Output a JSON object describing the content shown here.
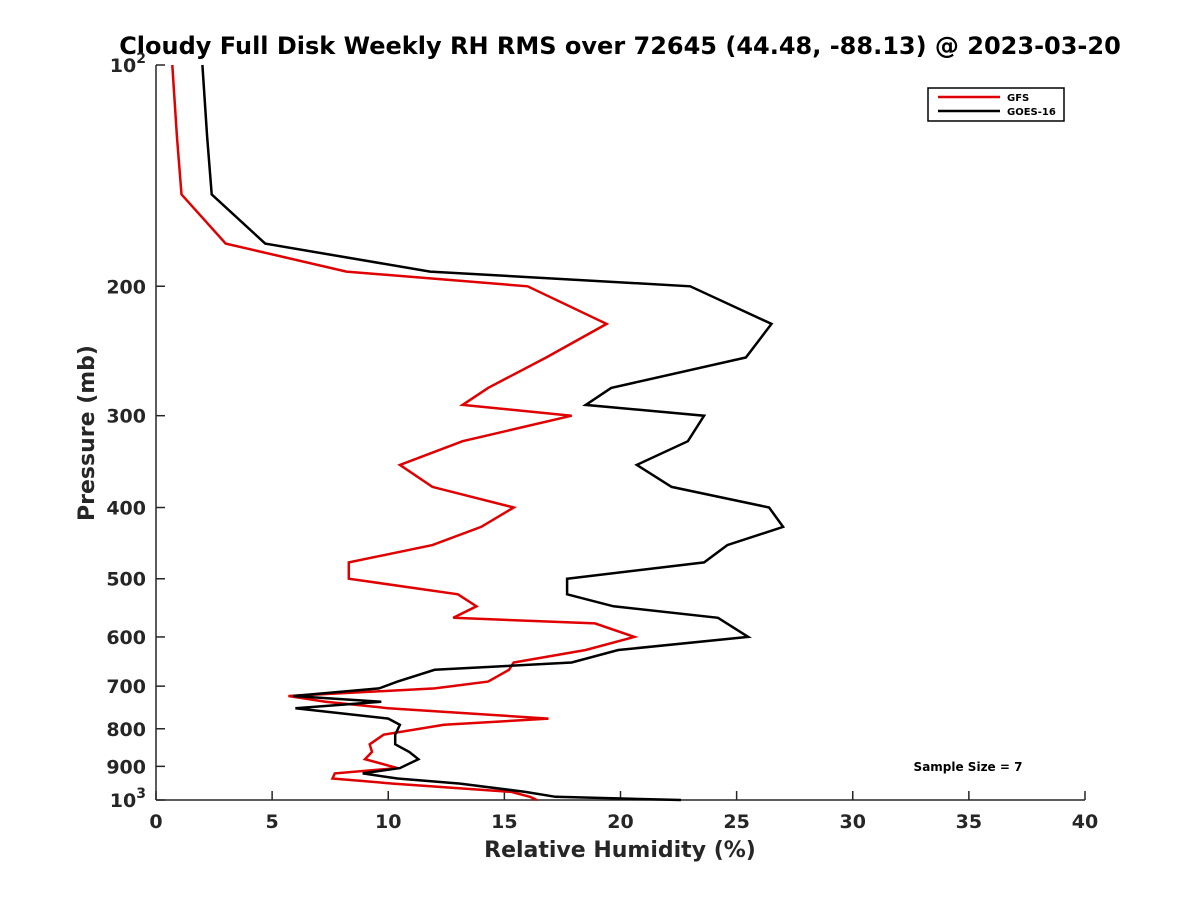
{
  "chart_data": {
    "type": "line",
    "title": "Cloudy Full Disk Weekly RH RMS over 72645 (44.48, -88.13) @ 2023-03-20",
    "xlabel": "Relative Humidity (%)",
    "ylabel": "Pressure (mb)",
    "xlim": [
      0,
      40
    ],
    "ylim": [
      1000,
      100
    ],
    "y_scale": "log",
    "x_ticks": [
      0,
      5,
      10,
      15,
      20,
      25,
      30,
      35,
      40
    ],
    "y_ticks": [
      {
        "value": 100,
        "label": "10",
        "sup": "2"
      },
      {
        "value": 200,
        "label": "200",
        "sup": ""
      },
      {
        "value": 300,
        "label": "300",
        "sup": ""
      },
      {
        "value": 400,
        "label": "400",
        "sup": ""
      },
      {
        "value": 500,
        "label": "500",
        "sup": ""
      },
      {
        "value": 600,
        "label": "600",
        "sup": ""
      },
      {
        "value": 700,
        "label": "700",
        "sup": ""
      },
      {
        "value": 800,
        "label": "800",
        "sup": ""
      },
      {
        "value": 900,
        "label": "900",
        "sup": ""
      },
      {
        "value": 1000,
        "label": "10",
        "sup": "3"
      }
    ],
    "grid": false,
    "legend_position": "top-right",
    "annotation": "Sample Size = 7",
    "series": [
      {
        "name": "GFS",
        "color": "#e00000",
        "points": [
          {
            "x": 0.7,
            "y": 100
          },
          {
            "x": 0.9,
            "y": 125
          },
          {
            "x": 1.1,
            "y": 150
          },
          {
            "x": 3.0,
            "y": 175
          },
          {
            "x": 8.2,
            "y": 191
          },
          {
            "x": 16.0,
            "y": 200
          },
          {
            "x": 19.4,
            "y": 225
          },
          {
            "x": 16.8,
            "y": 250
          },
          {
            "x": 14.3,
            "y": 275
          },
          {
            "x": 13.2,
            "y": 290
          },
          {
            "x": 17.9,
            "y": 300
          },
          {
            "x": 13.2,
            "y": 325
          },
          {
            "x": 10.5,
            "y": 350
          },
          {
            "x": 11.9,
            "y": 375
          },
          {
            "x": 15.4,
            "y": 400
          },
          {
            "x": 14.0,
            "y": 425
          },
          {
            "x": 11.9,
            "y": 450
          },
          {
            "x": 8.3,
            "y": 475
          },
          {
            "x": 8.3,
            "y": 500
          },
          {
            "x": 13.0,
            "y": 525
          },
          {
            "x": 13.8,
            "y": 545
          },
          {
            "x": 12.8,
            "y": 565
          },
          {
            "x": 18.9,
            "y": 575
          },
          {
            "x": 20.6,
            "y": 600
          },
          {
            "x": 18.5,
            "y": 625
          },
          {
            "x": 15.4,
            "y": 650
          },
          {
            "x": 15.2,
            "y": 665
          },
          {
            "x": 14.3,
            "y": 690
          },
          {
            "x": 12.0,
            "y": 705
          },
          {
            "x": 5.7,
            "y": 722
          },
          {
            "x": 7.3,
            "y": 735
          },
          {
            "x": 10.0,
            "y": 750
          },
          {
            "x": 16.9,
            "y": 775
          },
          {
            "x": 12.4,
            "y": 790
          },
          {
            "x": 9.8,
            "y": 815
          },
          {
            "x": 9.2,
            "y": 840
          },
          {
            "x": 9.3,
            "y": 860
          },
          {
            "x": 9.0,
            "y": 880
          },
          {
            "x": 10.4,
            "y": 905
          },
          {
            "x": 7.7,
            "y": 920
          },
          {
            "x": 7.6,
            "y": 935
          },
          {
            "x": 10.2,
            "y": 950
          },
          {
            "x": 15.3,
            "y": 975
          },
          {
            "x": 16.1,
            "y": 990
          },
          {
            "x": 16.4,
            "y": 1000
          }
        ]
      },
      {
        "name": "GOES-16",
        "color": "#000000",
        "points": [
          {
            "x": 2.0,
            "y": 100
          },
          {
            "x": 2.2,
            "y": 125
          },
          {
            "x": 2.4,
            "y": 150
          },
          {
            "x": 4.7,
            "y": 175
          },
          {
            "x": 11.8,
            "y": 191
          },
          {
            "x": 23.0,
            "y": 200
          },
          {
            "x": 26.5,
            "y": 225
          },
          {
            "x": 25.4,
            "y": 250
          },
          {
            "x": 19.6,
            "y": 275
          },
          {
            "x": 18.5,
            "y": 290
          },
          {
            "x": 23.6,
            "y": 300
          },
          {
            "x": 22.9,
            "y": 325
          },
          {
            "x": 20.7,
            "y": 350
          },
          {
            "x": 22.2,
            "y": 375
          },
          {
            "x": 26.4,
            "y": 400
          },
          {
            "x": 27.0,
            "y": 425
          },
          {
            "x": 24.6,
            "y": 450
          },
          {
            "x": 23.6,
            "y": 475
          },
          {
            "x": 17.7,
            "y": 500
          },
          {
            "x": 17.7,
            "y": 525
          },
          {
            "x": 19.7,
            "y": 545
          },
          {
            "x": 24.2,
            "y": 565
          },
          {
            "x": 25.5,
            "y": 600
          },
          {
            "x": 19.9,
            "y": 625
          },
          {
            "x": 17.9,
            "y": 650
          },
          {
            "x": 12.0,
            "y": 665
          },
          {
            "x": 10.4,
            "y": 690
          },
          {
            "x": 9.6,
            "y": 705
          },
          {
            "x": 5.9,
            "y": 722
          },
          {
            "x": 9.7,
            "y": 735
          },
          {
            "x": 6.0,
            "y": 750
          },
          {
            "x": 10.0,
            "y": 775
          },
          {
            "x": 10.5,
            "y": 790
          },
          {
            "x": 10.3,
            "y": 815
          },
          {
            "x": 10.3,
            "y": 840
          },
          {
            "x": 10.9,
            "y": 860
          },
          {
            "x": 11.3,
            "y": 880
          },
          {
            "x": 10.5,
            "y": 905
          },
          {
            "x": 8.9,
            "y": 920
          },
          {
            "x": 10.4,
            "y": 935
          },
          {
            "x": 13.1,
            "y": 950
          },
          {
            "x": 15.9,
            "y": 975
          },
          {
            "x": 17.2,
            "y": 990
          },
          {
            "x": 22.6,
            "y": 1000
          }
        ]
      }
    ]
  }
}
